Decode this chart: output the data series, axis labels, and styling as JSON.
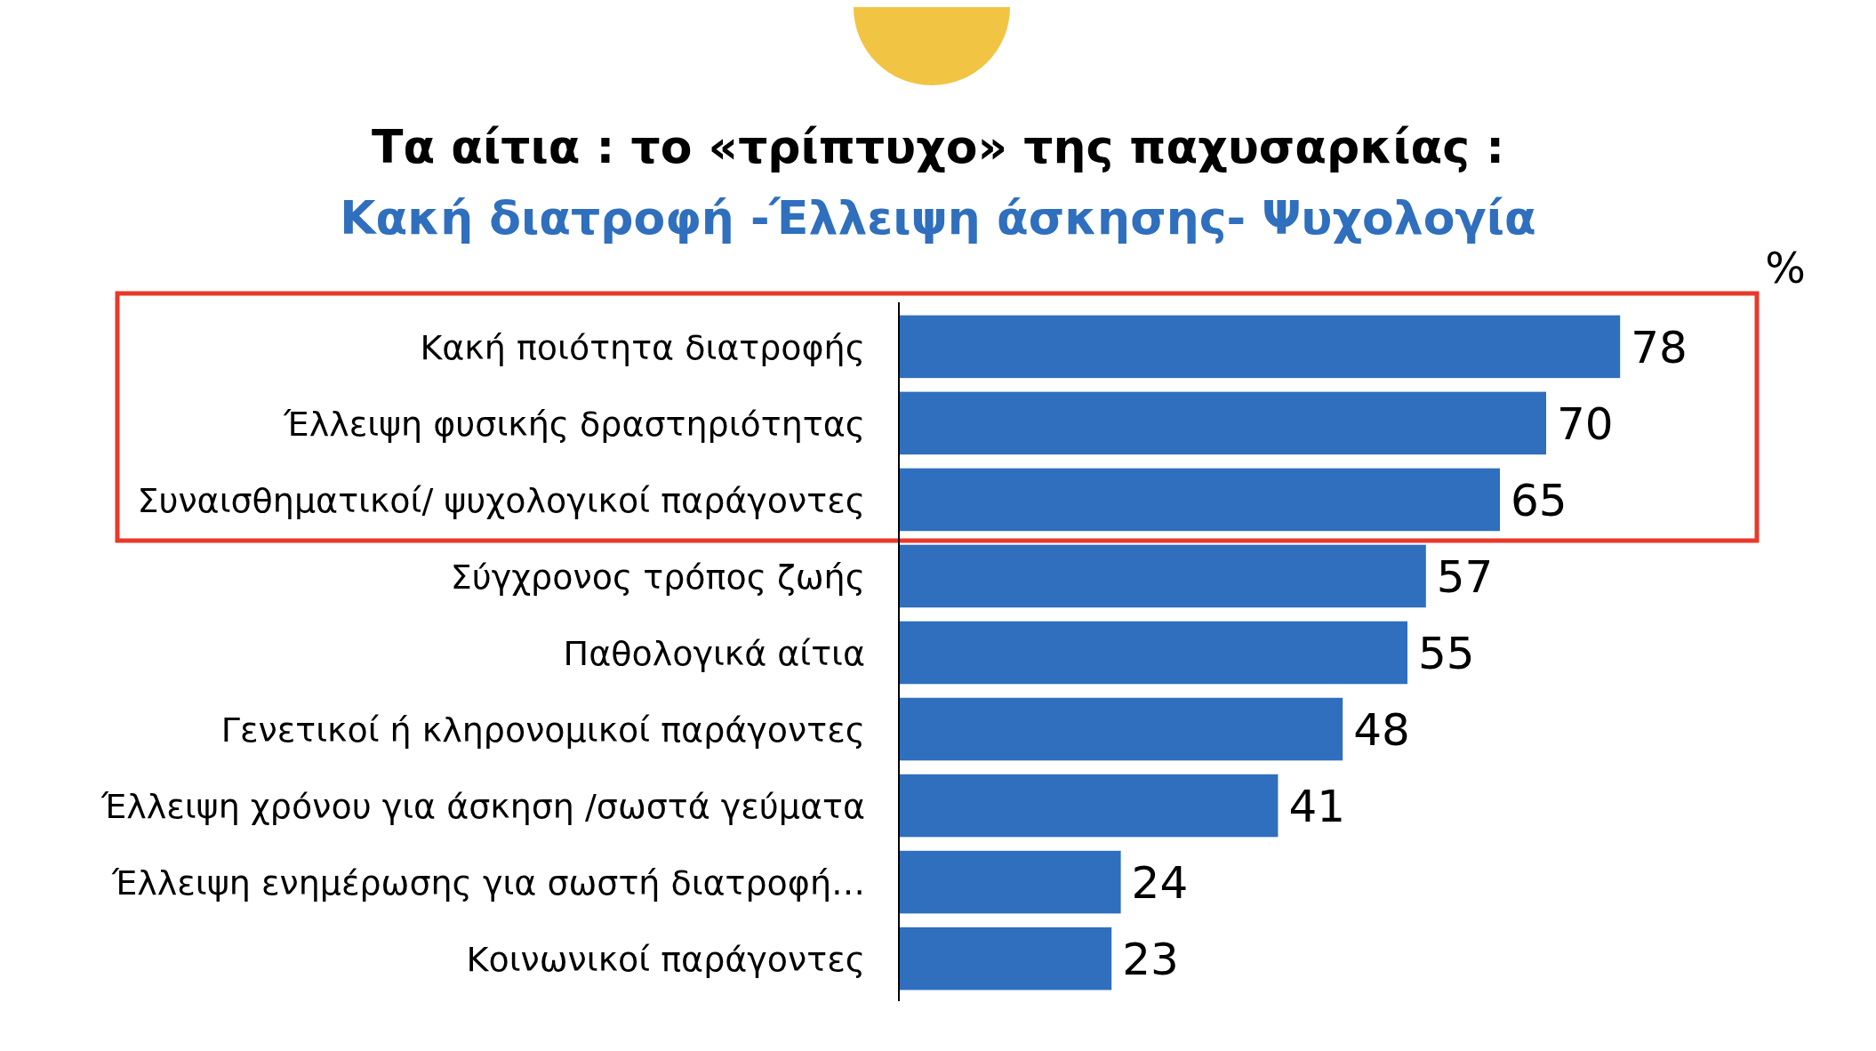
{
  "chart_data": {
    "type": "bar",
    "orientation": "horizontal",
    "title": "Τα αίτια : το «τρίπτυχο» της παχυσαρκίας :",
    "subtitle": "Κακή διατροφή -Έλλειψη άσκησης- Ψυχολογία",
    "xlabel": "%",
    "categories": [
      "Κακή ποιότητα διατροφής",
      "Έλλειψη φυσικής δραστηριότητας",
      "Συναισθηματικοί/ ψυχολογικοί παράγοντες",
      "Σύγχρονος τρόπος ζωής",
      "Παθολογικά αίτια",
      "Γενετικοί ή κληρονομικοί παράγοντες",
      "Έλλειψη χρόνου για άσκηση /σωστά γεύματα",
      "Έλλειψη ενημέρωσης για σωστή διατροφή…",
      "Κοινωνικοί παράγοντες"
    ],
    "values": [
      78,
      70,
      65,
      57,
      55,
      48,
      41,
      24,
      23
    ],
    "color": "#2f6fbd",
    "data_labels": true
  }
}
